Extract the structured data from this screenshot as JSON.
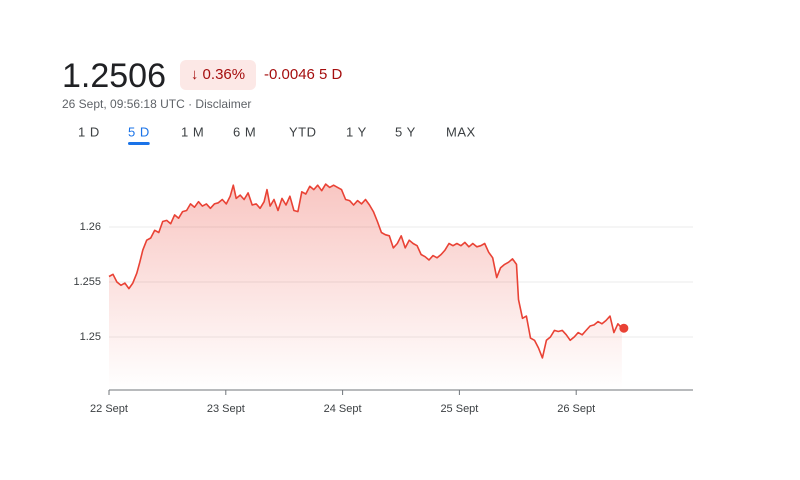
{
  "quote": {
    "price": "1.2506",
    "change_pct": "↓ 0.36%",
    "change_abs": "-0.0046 5 D",
    "timestamp": "26 Sept, 09:56:18 UTC · Disclaimer"
  },
  "tabs": [
    "1 D",
    "5 D",
    "1 M",
    "6 M",
    "YTD",
    "1 Y",
    "5 Y",
    "MAX"
  ],
  "selected_tab": 1,
  "chart_data": {
    "type": "line",
    "color": "#e94235",
    "grid": true,
    "xlim": [
      0,
      5
    ],
    "xticks": [
      {
        "value": 0,
        "label": "22 Sept"
      },
      {
        "value": 1,
        "label": "23 Sept"
      },
      {
        "value": 2,
        "label": "24 Sept"
      },
      {
        "value": 3,
        "label": "25 Sept"
      },
      {
        "value": 4,
        "label": "26 Sept"
      }
    ],
    "ylim": [
      1.245,
      1.265
    ],
    "yticks": [
      1.25,
      1.255,
      1.26
    ],
    "x": [
      0,
      0.034,
      0.068,
      0.102,
      0.136,
      0.17,
      0.204,
      0.238,
      0.264,
      0.289,
      0.323,
      0.357,
      0.391,
      0.426,
      0.46,
      0.494,
      0.528,
      0.562,
      0.596,
      0.63,
      0.664,
      0.698,
      0.732,
      0.766,
      0.8,
      0.834,
      0.868,
      0.902,
      0.936,
      0.97,
      1.004,
      1.038,
      1.064,
      1.089,
      1.123,
      1.157,
      1.191,
      1.226,
      1.26,
      1.294,
      1.328,
      1.353,
      1.379,
      1.413,
      1.447,
      1.481,
      1.515,
      1.549,
      1.583,
      1.617,
      1.651,
      1.685,
      1.719,
      1.753,
      1.787,
      1.821,
      1.855,
      1.889,
      1.923,
      1.957,
      1.991,
      2.026,
      2.06,
      2.094,
      2.128,
      2.162,
      2.196,
      2.23,
      2.264,
      2.298,
      2.332,
      2.366,
      2.4,
      2.434,
      2.468,
      2.502,
      2.536,
      2.57,
      2.604,
      2.638,
      2.672,
      2.706,
      2.74,
      2.774,
      2.809,
      2.843,
      2.877,
      2.911,
      2.945,
      2.979,
      3.013,
      3.047,
      3.081,
      3.115,
      3.149,
      3.183,
      3.217,
      3.251,
      3.285,
      3.319,
      3.353,
      3.387,
      3.421,
      3.455,
      3.489,
      3.506,
      3.54,
      3.574,
      3.609,
      3.643,
      3.677,
      3.711,
      3.745,
      3.779,
      3.813,
      3.847,
      3.881,
      3.915,
      3.949,
      3.983,
      4.017,
      4.051,
      4.085,
      4.119,
      4.153,
      4.187,
      4.221,
      4.255,
      4.289,
      4.323,
      4.357,
      4.391
    ],
    "values": [
      1.2555,
      1.2557,
      1.255,
      1.2547,
      1.2549,
      1.2544,
      1.2549,
      1.2558,
      1.2568,
      1.2579,
      1.2588,
      1.259,
      1.2597,
      1.2595,
      1.2605,
      1.2606,
      1.2603,
      1.2611,
      1.2608,
      1.2614,
      1.2615,
      1.2621,
      1.2618,
      1.2623,
      1.2619,
      1.2621,
      1.2617,
      1.2621,
      1.2622,
      1.2625,
      1.2621,
      1.2628,
      1.2638,
      1.2626,
      1.2629,
      1.2625,
      1.2631,
      1.262,
      1.2621,
      1.2617,
      1.2623,
      1.2634,
      1.2619,
      1.2625,
      1.2615,
      1.2626,
      1.262,
      1.2628,
      1.2615,
      1.2614,
      1.2632,
      1.263,
      1.2637,
      1.2634,
      1.2638,
      1.2633,
      1.2639,
      1.2636,
      1.2638,
      1.2636,
      1.2634,
      1.2625,
      1.2624,
      1.262,
      1.2624,
      1.2621,
      1.2625,
      1.262,
      1.2614,
      1.2605,
      1.2595,
      1.2593,
      1.2592,
      1.2581,
      1.2585,
      1.2592,
      1.2581,
      1.2588,
      1.2585,
      1.2583,
      1.2575,
      1.2573,
      1.257,
      1.2574,
      1.2572,
      1.2575,
      1.2579,
      1.2585,
      1.2583,
      1.2585,
      1.2583,
      1.2586,
      1.2582,
      1.2585,
      1.2582,
      1.2583,
      1.2585,
      1.2577,
      1.2572,
      1.2554,
      1.2563,
      1.2566,
      1.2568,
      1.2571,
      1.2566,
      1.2534,
      1.2517,
      1.2519,
      1.2499,
      1.2497,
      1.249,
      1.2481,
      1.2497,
      1.25,
      1.2506,
      1.2505,
      1.2506,
      1.2502,
      1.2497,
      1.25,
      1.2504,
      1.2502,
      1.2506,
      1.251,
      1.2511,
      1.2514,
      1.2512,
      1.2515,
      1.2519,
      1.2504,
      1.2512,
      1.2508
    ]
  }
}
